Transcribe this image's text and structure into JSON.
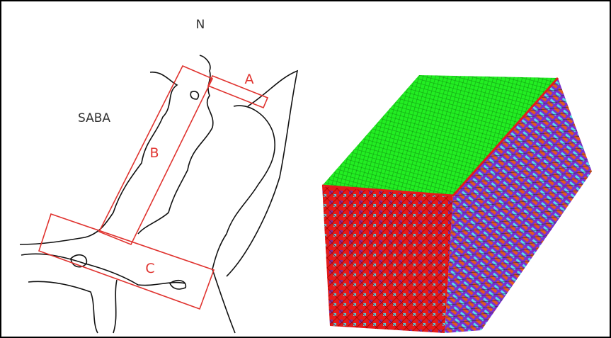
{
  "map": {
    "north_label": "N",
    "place_label": "SABA",
    "zones": [
      "A",
      "B",
      "C"
    ]
  }
}
